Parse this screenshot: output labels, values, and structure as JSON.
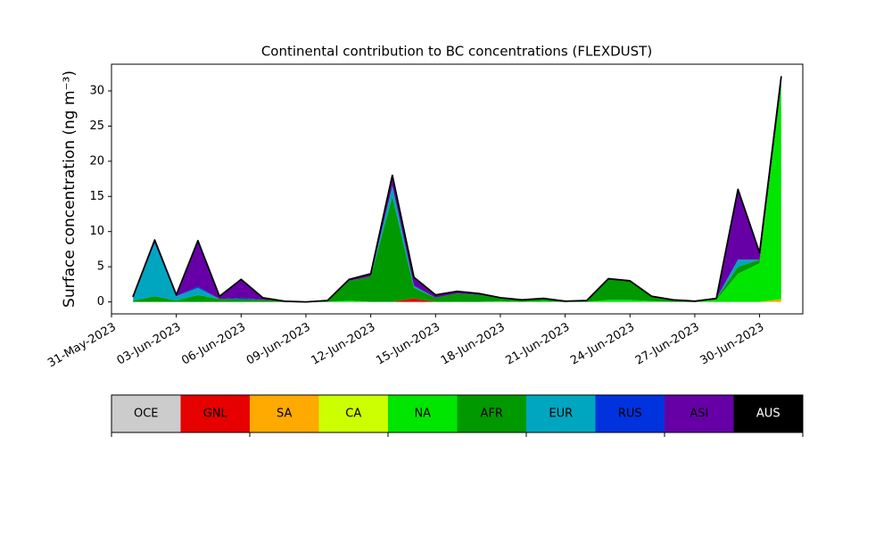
{
  "chart_data": {
    "type": "stacked_area",
    "title": "Continental contribution to BC concentrations (FLEXDUST)",
    "y_label": "Surface concentration (ng m⁻³)",
    "x": [
      "2023-06-01",
      "2023-06-02",
      "2023-06-03",
      "2023-06-04",
      "2023-06-05",
      "2023-06-06",
      "2023-06-07",
      "2023-06-08",
      "2023-06-09",
      "2023-06-10",
      "2023-06-11",
      "2023-06-12",
      "2023-06-13",
      "2023-06-14",
      "2023-06-15",
      "2023-06-16",
      "2023-06-17",
      "2023-06-18",
      "2023-06-19",
      "2023-06-20",
      "2023-06-21",
      "2023-06-22",
      "2023-06-23",
      "2023-06-24",
      "2023-06-25",
      "2023-06-26",
      "2023-06-27",
      "2023-06-28",
      "2023-06-29",
      "2023-06-30",
      "2023-07-01"
    ],
    "series": [
      {
        "name": "OCE",
        "color": "#cccccc",
        "values": [
          0,
          0,
          0,
          0,
          0,
          0,
          0,
          0,
          0,
          0,
          0,
          0,
          0,
          0,
          0,
          0,
          0,
          0,
          0,
          0,
          0,
          0,
          0,
          0,
          0,
          0,
          0,
          0,
          0,
          0,
          0
        ]
      },
      {
        "name": "GNL",
        "color": "#e60000",
        "values": [
          0,
          0,
          0,
          0,
          0,
          0,
          0,
          0,
          0,
          0,
          0,
          0,
          0,
          0.5,
          0,
          0,
          0,
          0,
          0,
          0,
          0,
          0,
          0,
          0,
          0,
          0,
          0,
          0,
          0,
          0,
          0
        ]
      },
      {
        "name": "SA",
        "color": "#ffaa00",
        "values": [
          0,
          0,
          0,
          0,
          0,
          0,
          0,
          0,
          0,
          0,
          0,
          0,
          0,
          0,
          0,
          0,
          0,
          0,
          0,
          0,
          0,
          0,
          0,
          0,
          0,
          0,
          0,
          0,
          0,
          0,
          0.4
        ]
      },
      {
        "name": "CA",
        "color": "#ccff00",
        "values": [
          0,
          0,
          0,
          0,
          0,
          0,
          0,
          0,
          0,
          0,
          0,
          0,
          0,
          0,
          0,
          0,
          0,
          0,
          0,
          0,
          0,
          0,
          0,
          0,
          0,
          0,
          0,
          0,
          0,
          0,
          0
        ]
      },
      {
        "name": "NA",
        "color": "#00e600",
        "values": [
          0,
          0,
          0,
          0,
          0,
          0,
          0,
          0,
          0,
          0,
          0.2,
          0,
          0,
          0,
          0,
          0,
          0,
          0.1,
          0,
          0.1,
          0,
          0,
          0.3,
          0.3,
          0.1,
          0,
          0,
          0.3,
          4,
          5.5,
          30
        ]
      },
      {
        "name": "AFR",
        "color": "#009900",
        "values": [
          0.2,
          0.8,
          0.2,
          1.0,
          0.4,
          0.4,
          0.3,
          0.1,
          0,
          0.2,
          2.8,
          3.6,
          15,
          1.5,
          0.6,
          1.2,
          1.0,
          0.5,
          0.3,
          0.4,
          0.1,
          0.2,
          3.0,
          2.7,
          0.7,
          0.3,
          0.1,
          0.2,
          1,
          0.5,
          0.6
        ]
      },
      {
        "name": "EUR",
        "color": "#00a6bf",
        "values": [
          0.6,
          7.5,
          0.6,
          1.0,
          0,
          0,
          0,
          0,
          0,
          0,
          0,
          0,
          1.5,
          0.3,
          0,
          0,
          0,
          0,
          0,
          0,
          0,
          0,
          0,
          0,
          0,
          0,
          0,
          0,
          1,
          0,
          0
        ]
      },
      {
        "name": "RUS",
        "color": "#0033dd",
        "values": [
          0,
          0.2,
          0,
          0.2,
          0,
          0.2,
          0,
          0,
          0,
          0,
          0,
          0,
          0,
          0,
          0,
          0,
          0,
          0,
          0,
          0,
          0,
          0,
          0,
          0,
          0,
          0,
          0,
          0,
          0,
          0,
          0
        ]
      },
      {
        "name": "ASI",
        "color": "#6600a6",
        "values": [
          0,
          0.3,
          0.2,
          6.5,
          0.4,
          2.6,
          0.3,
          0,
          0,
          0,
          0.2,
          0.4,
          1.5,
          1.2,
          0.4,
          0.3,
          0.2,
          0,
          0,
          0,
          0,
          0,
          0,
          0,
          0,
          0,
          0,
          0,
          10,
          1.0,
          1.0
        ]
      },
      {
        "name": "AUS",
        "color": "#000000",
        "values": [
          0,
          0,
          0,
          0,
          0,
          0,
          0,
          0,
          0,
          0,
          0,
          0,
          0,
          0,
          0,
          0,
          0,
          0,
          0,
          0,
          0,
          0,
          0,
          0,
          0,
          0,
          0,
          0,
          0,
          0,
          0
        ]
      }
    ],
    "xlim": [
      "2023-05-31",
      "2023-07-02"
    ],
    "xticks": [
      {
        "value": "2023-05-31",
        "label": "31-May-2023"
      },
      {
        "value": "2023-06-03",
        "label": "03-Jun-2023"
      },
      {
        "value": "2023-06-06",
        "label": "06-Jun-2023"
      },
      {
        "value": "2023-06-09",
        "label": "09-Jun-2023"
      },
      {
        "value": "2023-06-12",
        "label": "12-Jun-2023"
      },
      {
        "value": "2023-06-15",
        "label": "15-Jun-2023"
      },
      {
        "value": "2023-06-18",
        "label": "18-Jun-2023"
      },
      {
        "value": "2023-06-21",
        "label": "21-Jun-2023"
      },
      {
        "value": "2023-06-24",
        "label": "24-Jun-2023"
      },
      {
        "value": "2023-06-27",
        "label": "27-Jun-2023"
      },
      {
        "value": "2023-06-30",
        "label": "30-Jun-2023"
      }
    ],
    "ylim": [
      -1.7,
      33.8
    ],
    "yticks": [
      0,
      5,
      10,
      15,
      20,
      25,
      30
    ],
    "grid": false
  }
}
